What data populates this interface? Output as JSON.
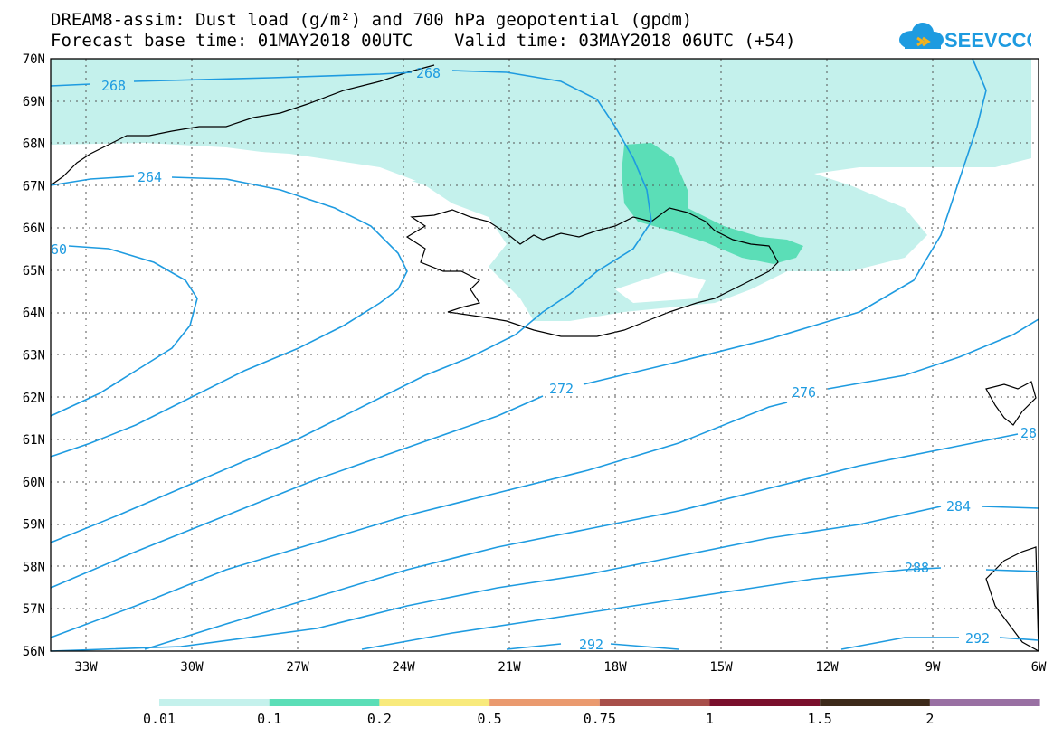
{
  "header": {
    "title_line1": "DREAM8-assim: Dust load (g/m²) and 700 hPa geopotential (gpdm)",
    "title_line2": "Forecast base time: 01MAY2018 00UTC    Valid time: 03MAY2018 06UTC (+54)",
    "logo_text": "SEEVCCC",
    "logo_color": "#1e9be0"
  },
  "map": {
    "lat_labels": [
      "70N",
      "69N",
      "68N",
      "67N",
      "66N",
      "65N",
      "64N",
      "63N",
      "62N",
      "61N",
      "60N",
      "59N",
      "58N",
      "57N",
      "56N"
    ],
    "lon_labels": [
      "33W",
      "30W",
      "27W",
      "24W",
      "21W",
      "18W",
      "15W",
      "12W",
      "9W",
      "6W"
    ],
    "contour_color": "#1e9be0",
    "coast_color": "#000000",
    "contour_labels": [
      "268",
      "268",
      "264",
      "60",
      "272",
      "276",
      "28",
      "284",
      "288",
      "292",
      "292"
    ]
  },
  "colorbar": {
    "colors": [
      "#c4f1ec",
      "#5bdeb7",
      "#f8ea7c",
      "#ea9a6f",
      "#a84f4a",
      "#7a0f2c",
      "#3d2a1a",
      "#9970a3"
    ],
    "labels": [
      "0.01",
      "0.1",
      "0.2",
      "0.5",
      "0.75",
      "1",
      "1.5",
      "2"
    ]
  }
}
